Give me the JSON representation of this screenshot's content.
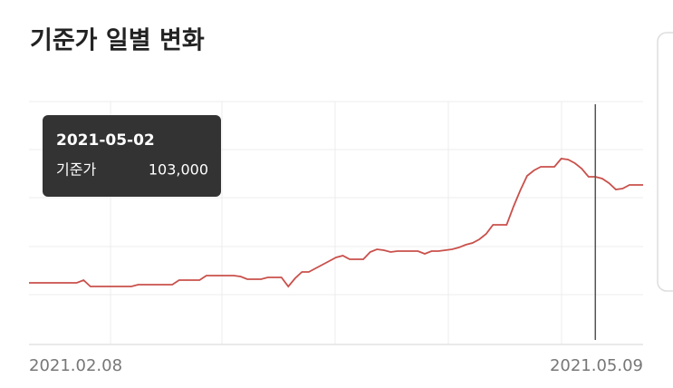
{
  "chart_data": {
    "type": "line",
    "title": "기준가 일별 변화",
    "categories": [
      "2021.02.08",
      null,
      null,
      null,
      null,
      null,
      null,
      null,
      null,
      null,
      null,
      null,
      null,
      null,
      null,
      null,
      null,
      null,
      null,
      null,
      null,
      null,
      null,
      null,
      null,
      null,
      null,
      null,
      null,
      null,
      null,
      null,
      null,
      null,
      null,
      null,
      null,
      null,
      null,
      null,
      null,
      null,
      null,
      null,
      null,
      null,
      null,
      null,
      null,
      null,
      null,
      null,
      null,
      null,
      null,
      null,
      null,
      null,
      null,
      null,
      null,
      null,
      null,
      null,
      null,
      null,
      null,
      null,
      null,
      null,
      null,
      null,
      null,
      null,
      null,
      null,
      null,
      null,
      null,
      null,
      null,
      null,
      null,
      null,
      null,
      null,
      null,
      null,
      null,
      null,
      "2021.05.09"
    ],
    "values": [
      97150,
      97150,
      97150,
      97150,
      97150,
      97150,
      97150,
      97150,
      97300,
      96950,
      96950,
      96950,
      96950,
      96950,
      96950,
      96950,
      97050,
      97050,
      97050,
      97050,
      97050,
      97050,
      97300,
      97300,
      97300,
      97300,
      97550,
      97550,
      97550,
      97550,
      97550,
      97500,
      97350,
      97350,
      97350,
      97450,
      97450,
      97450,
      96950,
      97400,
      97750,
      97750,
      97950,
      98150,
      98350,
      98550,
      98650,
      98450,
      98450,
      98450,
      98850,
      99000,
      98950,
      98850,
      98900,
      98900,
      98900,
      98900,
      98750,
      98900,
      98900,
      98950,
      99000,
      99100,
      99250,
      99350,
      99550,
      99850,
      100350,
      100350,
      100350,
      101350,
      102250,
      103050,
      103350,
      103550,
      103550,
      103550,
      104000,
      103950,
      103750,
      103450,
      103000,
      103000,
      102900,
      102650,
      102300,
      102350,
      102550,
      102550,
      102550
    ],
    "color": "#c9504b",
    "ylim": [
      93750,
      107150
    ],
    "tooltip": {
      "title": "2021-05-02",
      "label": "기준가",
      "value": {
        "value": 103000,
        "label": "103,000"
      }
    }
  }
}
